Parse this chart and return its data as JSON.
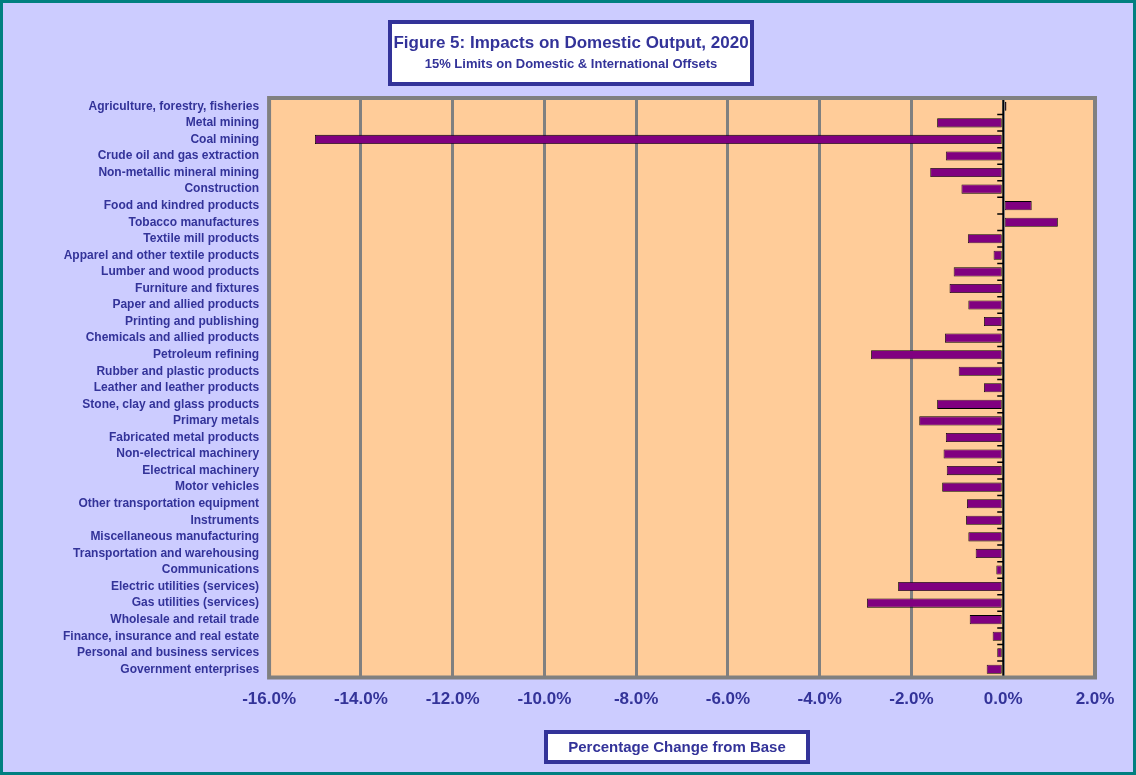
{
  "chart_data": {
    "type": "bar",
    "orientation": "horizontal",
    "title": "Figure 5: Impacts on Domestic Output, 2020",
    "subtitle": "15% Limits on Domestic & International Offsets",
    "xlabel": "Percentage Change from Base",
    "categories": [
      "Agriculture, forestry, fisheries",
      "Metal mining",
      "Coal mining",
      "Crude oil and gas extraction",
      "Non-metallic mineral mining",
      "Construction",
      "Food and kindred products",
      "Tobacco manufactures",
      "Textile mill products",
      "Apparel and other textile products",
      "Lumber and wood products",
      "Furniture and fixtures",
      "Paper and allied products",
      "Printing and publishing",
      "Chemicals and allied products",
      "Petroleum refining",
      "Rubber and plastic products",
      "Leather and leather products",
      "Stone, clay and glass products",
      "Primary metals",
      "Fabricated metal products",
      "Non-electrical machinery",
      "Electrical machinery",
      "Motor vehicles",
      "Other transportation equipment",
      "Instruments",
      "Miscellaneous manufacturing",
      "Transportation and warehousing",
      "Communications",
      "Electric utilities (services)",
      "Gas utilities (services)",
      "Wholesale and retail trade",
      "Finance, insurance and real estate",
      "Personal and business services",
      "Government enterprises"
    ],
    "values": [
      0.07,
      -1.44,
      -15.0,
      -1.25,
      -1.59,
      -0.91,
      0.62,
      1.19,
      -0.77,
      -0.21,
      -1.08,
      -1.17,
      -0.76,
      -0.42,
      -1.27,
      -2.88,
      -0.97,
      -0.42,
      -1.44,
      -1.83,
      -1.25,
      -1.3,
      -1.23,
      -1.33,
      -0.79,
      -0.81,
      -0.76,
      -0.6,
      -0.15,
      -2.29,
      -2.97,
      -0.73,
      -0.23,
      -0.13,
      -0.36
    ],
    "color": "#800080",
    "xlim": [
      -16,
      2
    ],
    "xticks": [
      {
        "value": -16,
        "label": "-16.0%"
      },
      {
        "value": -14,
        "label": "-14.0%"
      },
      {
        "value": -12,
        "label": "-12.0%"
      },
      {
        "value": -10,
        "label": "-10.0%"
      },
      {
        "value": -8,
        "label": "-8.0%"
      },
      {
        "value": -6,
        "label": "-6.0%"
      },
      {
        "value": -4,
        "label": "-4.0%"
      },
      {
        "value": -2,
        "label": "-2.0%"
      },
      {
        "value": 0,
        "label": "0.0%"
      },
      {
        "value": 2,
        "label": "2.0%"
      }
    ],
    "grid": "x"
  }
}
